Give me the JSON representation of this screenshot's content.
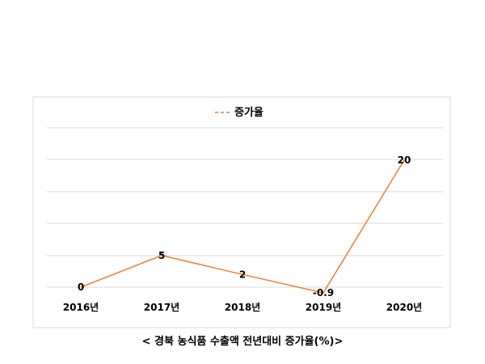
{
  "chart_data": {
    "type": "line",
    "title": "",
    "caption": "< 경북 농식품 수출액 전년대비 증가율(%)>",
    "categories": [
      "2016년",
      "2017년",
      "2018년",
      "2019년",
      "2020년"
    ],
    "series": [
      {
        "name": "증가율",
        "values": [
          0,
          5,
          2,
          -0.9,
          20
        ],
        "labels": [
          "0",
          "5",
          "2",
          "-0.9",
          "20"
        ]
      }
    ],
    "ylim": [
      -1,
      25
    ],
    "grid": true,
    "legend": "top-center",
    "colors": {
      "series": "#ed7d31",
      "grid": "#d9d9d9",
      "frame": "#d9d9d9"
    }
  }
}
